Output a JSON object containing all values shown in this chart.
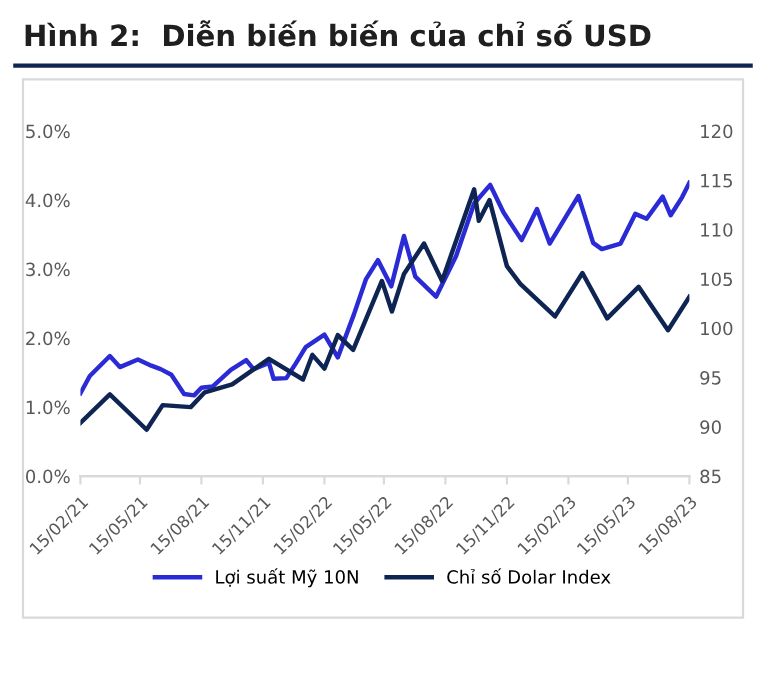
{
  "chart_data": {
    "type": "line",
    "title": "Hình 2:  Diễn biến biến của chỉ số USD",
    "series": [
      {
        "name": "Lợi suất Mỹ 10N",
        "color": "#2b2bd6",
        "axis": "y",
        "x": [
          "2021-02-15",
          "2021-03-01",
          "2021-03-31",
          "2021-04-15",
          "2021-05-12",
          "2021-06-01",
          "2021-06-15",
          "2021-07-01",
          "2021-07-20",
          "2021-08-04",
          "2021-08-15",
          "2021-09-01",
          "2021-09-28",
          "2021-10-21",
          "2021-11-01",
          "2021-11-24",
          "2021-12-01",
          "2021-12-20",
          "2022-01-03",
          "2022-01-18",
          "2022-02-15",
          "2022-03-07",
          "2022-03-31",
          "2022-04-18",
          "2022-05-06",
          "2022-05-26",
          "2022-06-14",
          "2022-07-01",
          "2022-08-01",
          "2022-08-31",
          "2022-09-27",
          "2022-10-21",
          "2022-11-10",
          "2022-12-07",
          "2022-12-30",
          "2023-01-18",
          "2023-03-02",
          "2023-03-24",
          "2023-04-06",
          "2023-05-04",
          "2023-05-26",
          "2023-06-12",
          "2023-07-06",
          "2023-07-18",
          "2023-08-04",
          "2023-08-15"
        ],
        "values": [
          1.2,
          1.45,
          1.74,
          1.58,
          1.69,
          1.6,
          1.55,
          1.47,
          1.19,
          1.17,
          1.28,
          1.3,
          1.54,
          1.68,
          1.55,
          1.64,
          1.41,
          1.42,
          1.63,
          1.87,
          2.05,
          1.72,
          2.34,
          2.85,
          3.13,
          2.75,
          3.48,
          2.89,
          2.6,
          3.19,
          3.95,
          4.22,
          3.82,
          3.42,
          3.87,
          3.37,
          4.06,
          3.38,
          3.29,
          3.37,
          3.8,
          3.73,
          4.05,
          3.78,
          4.04,
          4.25
        ]
      },
      {
        "name": "Chỉ số Dolar Index",
        "color": "#0e2452",
        "axis": "y2",
        "x": [
          "2021-02-15",
          "2021-03-31",
          "2021-05-25",
          "2021-06-18",
          "2021-07-30",
          "2021-08-20",
          "2021-09-30",
          "2021-11-24",
          "2022-01-14",
          "2022-01-28",
          "2022-02-15",
          "2022-03-07",
          "2022-03-30",
          "2022-05-12",
          "2022-05-27",
          "2022-06-14",
          "2022-07-14",
          "2022-08-10",
          "2022-09-27",
          "2022-10-04",
          "2022-10-20",
          "2022-11-15",
          "2022-12-05",
          "2023-01-26",
          "2023-03-08",
          "2023-04-14",
          "2023-05-31",
          "2023-07-14",
          "2023-08-15"
        ],
        "values": [
          90.4,
          93.3,
          89.7,
          92.2,
          92.0,
          93.5,
          94.3,
          96.9,
          94.8,
          97.3,
          95.9,
          99.3,
          97.8,
          104.8,
          101.7,
          105.5,
          108.6,
          104.8,
          114.1,
          110.9,
          113.0,
          106.3,
          104.5,
          101.2,
          105.6,
          101.0,
          104.2,
          99.8,
          103.2
        ]
      }
    ],
    "xlim": [
      "2021-02-15",
      "2023-08-15"
    ],
    "xticks": [
      {
        "value": "2021-02-15",
        "label": "15/02/21"
      },
      {
        "value": "2021-05-15",
        "label": "15/05/21"
      },
      {
        "value": "2021-08-15",
        "label": "15/08/21"
      },
      {
        "value": "2021-11-15",
        "label": "15/11/21"
      },
      {
        "value": "2022-02-15",
        "label": "15/02/22"
      },
      {
        "value": "2022-05-15",
        "label": "15/05/22"
      },
      {
        "value": "2022-08-15",
        "label": "15/08/22"
      },
      {
        "value": "2022-11-15",
        "label": "15/11/22"
      },
      {
        "value": "2023-02-15",
        "label": "15/02/23"
      },
      {
        "value": "2023-05-15",
        "label": "15/05/23"
      },
      {
        "value": "2023-08-15",
        "label": "15/08/23"
      }
    ],
    "ylim": [
      0,
      5
    ],
    "yticks": [
      {
        "value": 0,
        "label": "0.0%"
      },
      {
        "value": 1,
        "label": "1.0%"
      },
      {
        "value": 2,
        "label": "2.0%"
      },
      {
        "value": 3,
        "label": "3.0%"
      },
      {
        "value": 4,
        "label": "4.0%"
      },
      {
        "value": 5,
        "label": "5.0%"
      }
    ],
    "y2lim": [
      85,
      120
    ],
    "y2ticks": [
      85,
      90,
      95,
      100,
      105,
      110,
      115,
      120
    ],
    "legend": "bottom",
    "grid": false,
    "marker": "none",
    "line_style": "solid"
  }
}
